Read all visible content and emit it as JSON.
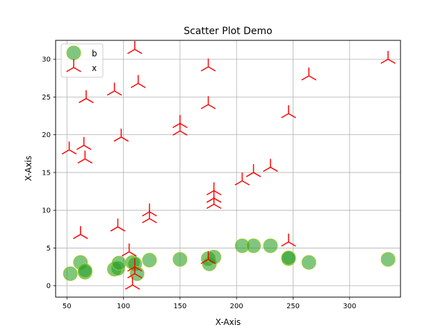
{
  "chart_data": {
    "type": "scatter",
    "title": "Scatter Plot Demo",
    "xlabel": "X-Axis",
    "ylabel": "X-Axis",
    "xlim": [
      40,
      345
    ],
    "ylim": [
      -1.5,
      32.5
    ],
    "xticks": [
      50,
      100,
      150,
      200,
      250,
      300
    ],
    "yticks": [
      0,
      5,
      10,
      15,
      20,
      25,
      30
    ],
    "grid": true,
    "legend": "top-left",
    "series": [
      {
        "name": "b",
        "marker": "circle",
        "color": "#2ca02c",
        "edge_color": "#9acd32",
        "points": [
          [
            53,
            1.6
          ],
          [
            62,
            3.1
          ],
          [
            66,
            1.8
          ],
          [
            66,
            2.0
          ],
          [
            92,
            2.2
          ],
          [
            95,
            2.3
          ],
          [
            96,
            3.0
          ],
          [
            108,
            3.1
          ],
          [
            110,
            2.9
          ],
          [
            112,
            1.6
          ],
          [
            123,
            3.4
          ],
          [
            150,
            3.5
          ],
          [
            175,
            3.6
          ],
          [
            176,
            2.9
          ],
          [
            180,
            3.8
          ],
          [
            205,
            5.3
          ],
          [
            215,
            5.3
          ],
          [
            230,
            5.3
          ],
          [
            246,
            3.6
          ],
          [
            246,
            3.7
          ],
          [
            264,
            3.1
          ],
          [
            334,
            3.5
          ]
        ]
      },
      {
        "name": "x",
        "marker": "tri_down",
        "color": "#ff0000",
        "points": [
          [
            52,
            18.0
          ],
          [
            62,
            6.8
          ],
          [
            65,
            18.6
          ],
          [
            66,
            16.8
          ],
          [
            67,
            24.8
          ],
          [
            92,
            25.8
          ],
          [
            95,
            7.8
          ],
          [
            98,
            19.7
          ],
          [
            105,
            4.5
          ],
          [
            108,
            0.1
          ],
          [
            110,
            1.6
          ],
          [
            110,
            2.5
          ],
          [
            110,
            31.3
          ],
          [
            113,
            26.8
          ],
          [
            123,
            9.8
          ],
          [
            123,
            8.9
          ],
          [
            150,
            21.5
          ],
          [
            150,
            20.5
          ],
          [
            175,
            29.0
          ],
          [
            175,
            24.0
          ],
          [
            175,
            3.5
          ],
          [
            180,
            12.6
          ],
          [
            180,
            11.6
          ],
          [
            180,
            10.8
          ],
          [
            205,
            13.9
          ],
          [
            215,
            15.0
          ],
          [
            230,
            15.7
          ],
          [
            246,
            22.8
          ],
          [
            246,
            5.8
          ],
          [
            264,
            27.8
          ],
          [
            334,
            30.0
          ]
        ]
      }
    ]
  }
}
